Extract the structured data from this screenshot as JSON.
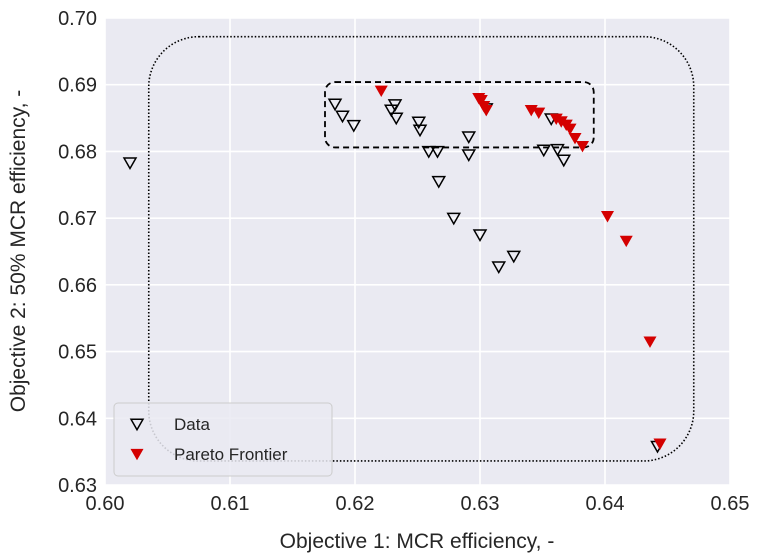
{
  "chart_data": {
    "type": "scatter",
    "xlabel": "Objective 1: MCR efficiency, -",
    "ylabel": "Objective 2: 50% MCR efficiency, -",
    "xlim": [
      0.6,
      0.65
    ],
    "ylim": [
      0.63,
      0.7
    ],
    "xticks": [
      "0.60",
      "0.61",
      "0.62",
      "0.63",
      "0.64",
      "0.65"
    ],
    "yticks": [
      "0.63",
      "0.64",
      "0.65",
      "0.66",
      "0.67",
      "0.68",
      "0.69",
      "0.70"
    ],
    "grid": true,
    "legend_position": "bottom-left",
    "series": [
      {
        "name": "Data",
        "marker": "hollow-triangle-down",
        "color": "#000000",
        "points": [
          [
            0.602,
            0.6783
          ],
          [
            0.6184,
            0.6871
          ],
          [
            0.619,
            0.6853
          ],
          [
            0.6199,
            0.6839
          ],
          [
            0.6229,
            0.6862
          ],
          [
            0.6232,
            0.687
          ],
          [
            0.6233,
            0.685
          ],
          [
            0.6251,
            0.6844
          ],
          [
            0.6252,
            0.6832
          ],
          [
            0.6259,
            0.68
          ],
          [
            0.6266,
            0.68
          ],
          [
            0.6267,
            0.6755
          ],
          [
            0.6279,
            0.67
          ],
          [
            0.6291,
            0.6822
          ],
          [
            0.6291,
            0.6795
          ],
          [
            0.63,
            0.6675
          ],
          [
            0.6305,
            0.6864
          ],
          [
            0.6315,
            0.6627
          ],
          [
            0.6327,
            0.6643
          ],
          [
            0.6351,
            0.6802
          ],
          [
            0.6357,
            0.6849
          ],
          [
            0.6362,
            0.6803
          ],
          [
            0.6367,
            0.6787
          ],
          [
            0.6442,
            0.6358
          ]
        ]
      },
      {
        "name": "Pareto Frontier",
        "marker": "filled-triangle-down",
        "color": "#d40000",
        "points": [
          [
            0.6221,
            0.6891
          ],
          [
            0.6299,
            0.688
          ],
          [
            0.6301,
            0.6877
          ],
          [
            0.6303,
            0.6868
          ],
          [
            0.6305,
            0.6862
          ],
          [
            0.6341,
            0.6862
          ],
          [
            0.6347,
            0.6858
          ],
          [
            0.6361,
            0.6849
          ],
          [
            0.6365,
            0.6845
          ],
          [
            0.6369,
            0.684
          ],
          [
            0.6372,
            0.6834
          ],
          [
            0.6376,
            0.682
          ],
          [
            0.6382,
            0.6808
          ],
          [
            0.6402,
            0.6703
          ],
          [
            0.6417,
            0.6666
          ],
          [
            0.6436,
            0.6515
          ],
          [
            0.6444,
            0.6362
          ]
        ]
      }
    ]
  }
}
